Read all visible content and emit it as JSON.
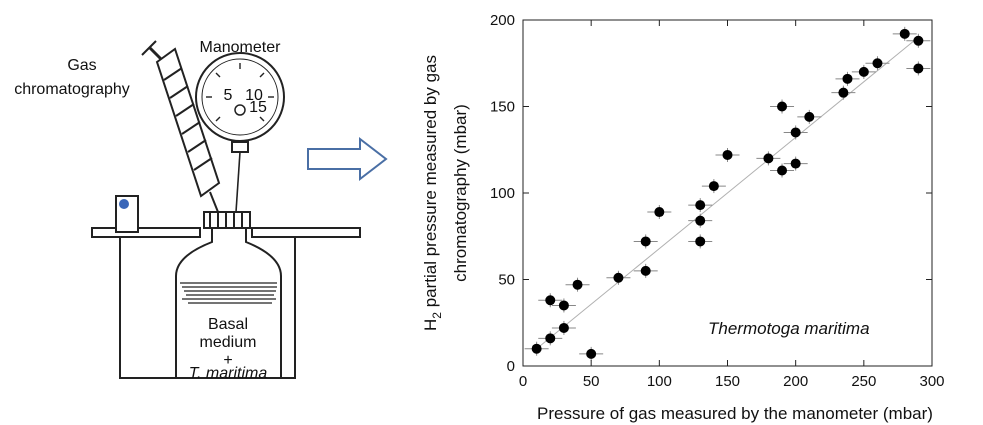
{
  "diagram": {
    "gas_chromatography_line1": "Gas",
    "gas_chromatography_line2": "chromatography",
    "manometer_label": "Manometer",
    "dial_marks": [
      "5",
      "10",
      "15"
    ],
    "medium_line1": "Basal",
    "medium_line2": "medium",
    "medium_line3": "+",
    "medium_line4": "T. maritima"
  },
  "chart_data": {
    "type": "scatter",
    "title": "",
    "xlabel": "Pressure of gas measured by the manometer (mbar)",
    "ylabel_main": "H",
    "ylabel_sub": "2",
    "ylabel_rest": " partial pressure measured by gas",
    "ylabel_line2": "chromatography (mbar)",
    "xlim": [
      0,
      300
    ],
    "ylim": [
      0,
      200
    ],
    "xticks": [
      0,
      50,
      100,
      150,
      200,
      250,
      300
    ],
    "yticks": [
      0,
      50,
      100,
      150,
      200
    ],
    "annotation": "Thermotoga maritima",
    "grid": false,
    "trendline": [
      [
        10,
        10
      ],
      [
        290,
        190
      ]
    ],
    "points": [
      {
        "x": 10,
        "y": 10
      },
      {
        "x": 20,
        "y": 16
      },
      {
        "x": 20,
        "y": 38
      },
      {
        "x": 30,
        "y": 35
      },
      {
        "x": 30,
        "y": 22
      },
      {
        "x": 40,
        "y": 47
      },
      {
        "x": 50,
        "y": 7
      },
      {
        "x": 70,
        "y": 51
      },
      {
        "x": 90,
        "y": 55
      },
      {
        "x": 90,
        "y": 72
      },
      {
        "x": 100,
        "y": 89
      },
      {
        "x": 130,
        "y": 72
      },
      {
        "x": 130,
        "y": 84
      },
      {
        "x": 130,
        "y": 93
      },
      {
        "x": 140,
        "y": 104
      },
      {
        "x": 150,
        "y": 122
      },
      {
        "x": 180,
        "y": 120
      },
      {
        "x": 190,
        "y": 113
      },
      {
        "x": 190,
        "y": 150
      },
      {
        "x": 200,
        "y": 117
      },
      {
        "x": 200,
        "y": 135
      },
      {
        "x": 210,
        "y": 144
      },
      {
        "x": 235,
        "y": 158
      },
      {
        "x": 238,
        "y": 166
      },
      {
        "x": 250,
        "y": 170
      },
      {
        "x": 260,
        "y": 175
      },
      {
        "x": 280,
        "y": 192
      },
      {
        "x": 290,
        "y": 188
      },
      {
        "x": 290,
        "y": 172
      }
    ]
  }
}
